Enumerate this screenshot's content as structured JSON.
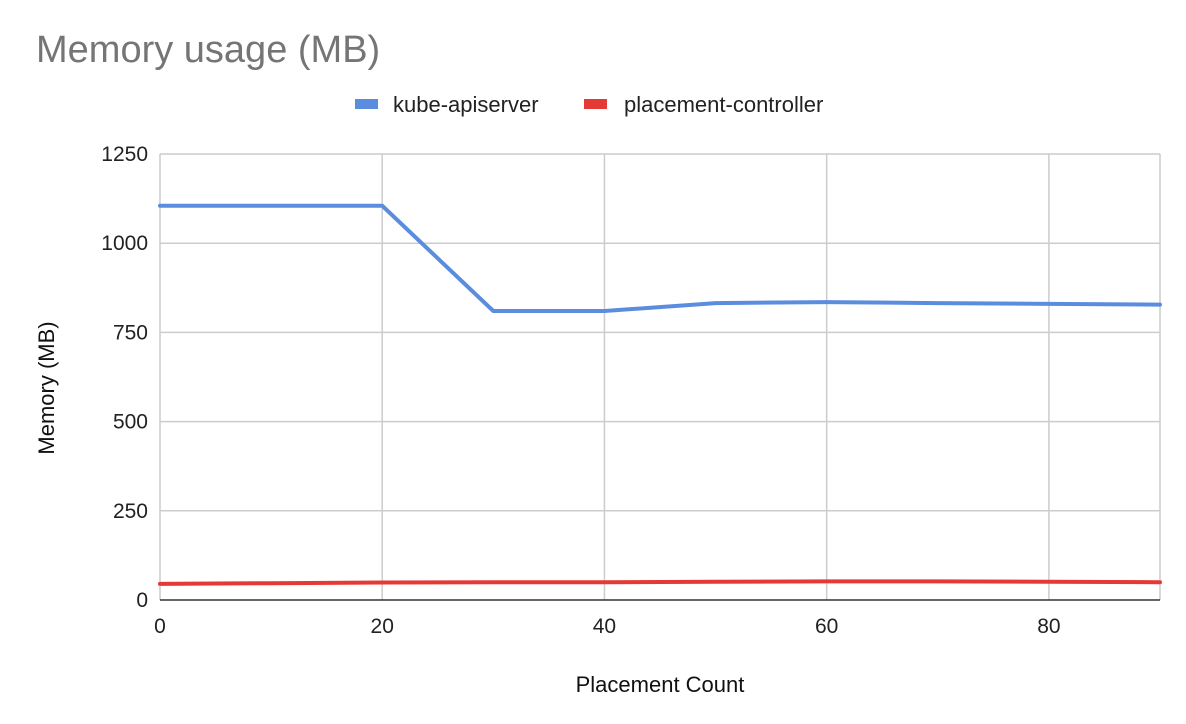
{
  "chart_data": {
    "type": "line",
    "title": "Memory usage (MB)",
    "xlabel": "Placement Count",
    "ylabel": "Memory (MB)",
    "xlim": [
      0,
      90
    ],
    "ylim": [
      0,
      1250
    ],
    "x_ticks": [
      0,
      20,
      40,
      60,
      80
    ],
    "y_ticks": [
      0,
      250,
      500,
      750,
      1000,
      1250
    ],
    "x": [
      0,
      10,
      20,
      30,
      40,
      50,
      60,
      70,
      80,
      90
    ],
    "series": [
      {
        "name": "kube-apiserver",
        "color": "#5b8dde",
        "values": [
          1105,
          1105,
          1105,
          810,
          810,
          832,
          835,
          832,
          830,
          828
        ]
      },
      {
        "name": "placement-controller",
        "color": "#e53935",
        "values": [
          45,
          47,
          49,
          50,
          50,
          51,
          52,
          52,
          51,
          50
        ]
      }
    ],
    "grid": true,
    "legend_position": "top-center"
  }
}
